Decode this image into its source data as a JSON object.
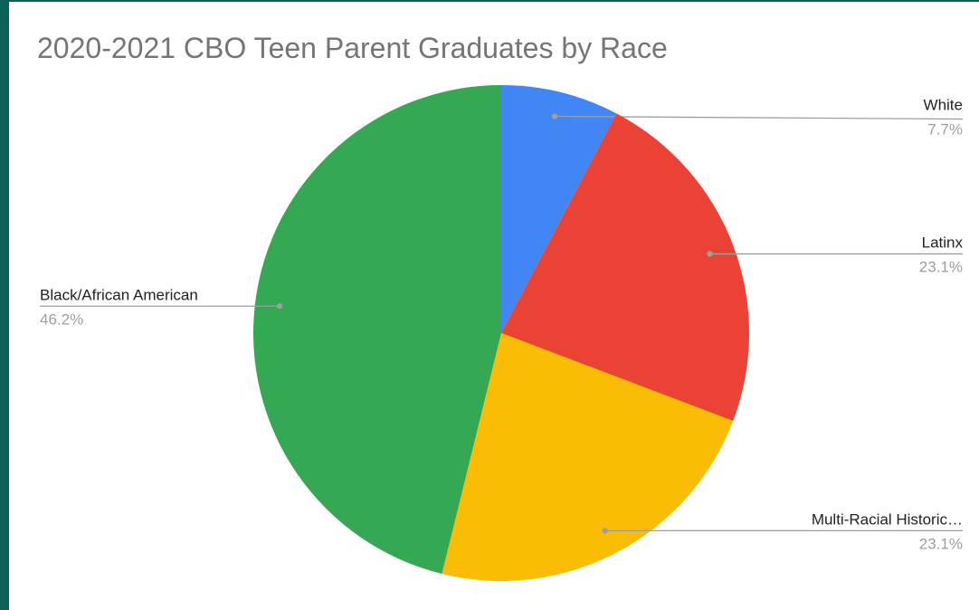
{
  "chart_data": {
    "type": "pie",
    "title": "2020-2021 CBO Teen Parent Graduates by Race",
    "slices": [
      {
        "label": "White",
        "value": 7.7,
        "value_label": "7.7%",
        "color": "#4285f4",
        "label_side": "right"
      },
      {
        "label": "Latinx",
        "value": 23.1,
        "value_label": "23.1%",
        "color": "#ea4335",
        "label_side": "right"
      },
      {
        "label": "Multi-Racial Historic…",
        "value": 23.1,
        "value_label": "23.1%",
        "color": "#fbbc04",
        "label_side": "right"
      },
      {
        "label": "Black/African American",
        "value": 46.2,
        "value_label": "46.2%",
        "color": "#34a853",
        "label_side": "left"
      }
    ],
    "start_angle": "12 o'clock",
    "direction": "clockwise",
    "legend": "labels with leader lines"
  },
  "colors": {
    "frame": "#0b6159",
    "panel": "#ffffff",
    "title_text": "#757575",
    "leader_line": "#9e9e9e"
  }
}
